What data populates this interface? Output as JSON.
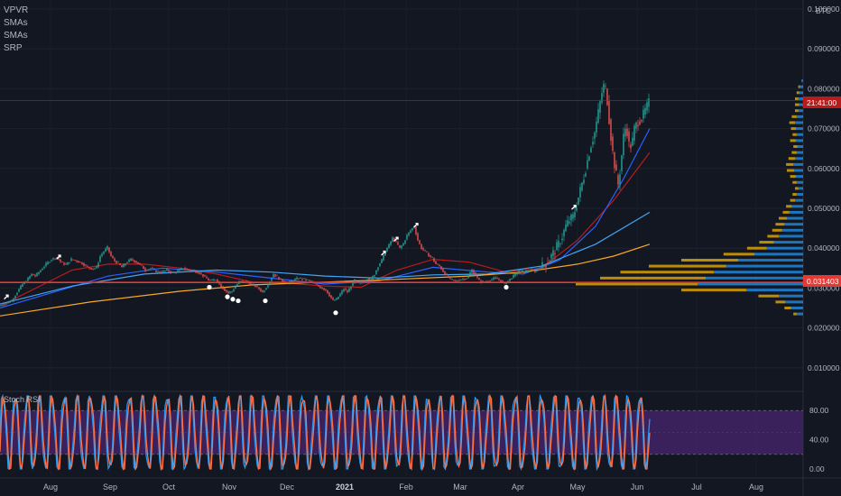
{
  "indicators": [
    "VPVR",
    "SMAs",
    "SMAs",
    "SRP"
  ],
  "currency": "BTC",
  "price_tag_top": "21:41:00",
  "price_tag_red": "0.031403",
  "stoch_label": "Stoch RSI",
  "colors": {
    "background": "#131722",
    "up_candle": "#26a69a",
    "down_candle": "#ef5350",
    "sma_red": "#b71c1c",
    "sma_blue": "#2962ff",
    "sma_lightblue": "#42a5f5",
    "sma_yellow": "#f9a825",
    "support_line": "#e53935",
    "stoch_k": "#2196f3",
    "stoch_d": "#ff7043",
    "stoch_band": "#5b2a8c",
    "vp_blue": "#2196f3",
    "vp_yellow": "#f5b400"
  },
  "chart_data": {
    "type": "candlestick",
    "symbol_quote": "BTC",
    "y_axis": {
      "ticks": [
        "0.010000",
        "0.020000",
        "0.030000",
        "0.040000",
        "0.050000",
        "0.060000",
        "0.070000",
        "0.080000",
        "0.090000",
        "0.100000"
      ],
      "range": [
        0.0,
        0.1
      ]
    },
    "x_axis": {
      "ticks": [
        "Aug",
        "Sep",
        "Oct",
        "Nov",
        "Dec",
        "2021",
        "Feb",
        "Mar",
        "Apr",
        "May",
        "Jun",
        "Jul",
        "Aug"
      ],
      "bold": [
        "2021"
      ]
    },
    "price_path": [
      [
        0,
        0.0255
      ],
      [
        8,
        0.0262
      ],
      [
        14,
        0.0268
      ],
      [
        20,
        0.029
      ],
      [
        26,
        0.031
      ],
      [
        30,
        0.0318
      ],
      [
        36,
        0.0335
      ],
      [
        40,
        0.033
      ],
      [
        46,
        0.0345
      ],
      [
        52,
        0.036
      ],
      [
        58,
        0.0372
      ],
      [
        64,
        0.0378
      ],
      [
        68,
        0.0366
      ],
      [
        74,
        0.0358
      ],
      [
        80,
        0.0372
      ],
      [
        86,
        0.0368
      ],
      [
        92,
        0.0362
      ],
      [
        98,
        0.0352
      ],
      [
        104,
        0.0348
      ],
      [
        108,
        0.0352
      ],
      [
        112,
        0.038
      ],
      [
        116,
        0.0392
      ],
      [
        120,
        0.0402
      ],
      [
        124,
        0.038
      ],
      [
        128,
        0.0368
      ],
      [
        132,
        0.0362
      ],
      [
        136,
        0.0352
      ],
      [
        140,
        0.0362
      ],
      [
        146,
        0.0372
      ],
      [
        152,
        0.0365
      ],
      [
        158,
        0.0355
      ],
      [
        162,
        0.0345
      ],
      [
        168,
        0.035
      ],
      [
        174,
        0.0342
      ],
      [
        180,
        0.034
      ],
      [
        186,
        0.0345
      ],
      [
        192,
        0.0338
      ],
      [
        198,
        0.0343
      ],
      [
        204,
        0.035
      ],
      [
        210,
        0.0346
      ],
      [
        216,
        0.0344
      ],
      [
        222,
        0.0338
      ],
      [
        228,
        0.0328
      ],
      [
        232,
        0.032
      ],
      [
        236,
        0.0318
      ],
      [
        240,
        0.0322
      ],
      [
        246,
        0.0305
      ],
      [
        250,
        0.0295
      ],
      [
        254,
        0.0288
      ],
      [
        258,
        0.0292
      ],
      [
        262,
        0.0305
      ],
      [
        266,
        0.0315
      ],
      [
        272,
        0.0318
      ],
      [
        278,
        0.031
      ],
      [
        284,
        0.0305
      ],
      [
        288,
        0.0298
      ],
      [
        292,
        0.029
      ],
      [
        296,
        0.0302
      ],
      [
        300,
        0.0318
      ],
      [
        304,
        0.0335
      ],
      [
        308,
        0.0328
      ],
      [
        314,
        0.0318
      ],
      [
        320,
        0.0312
      ],
      [
        326,
        0.032
      ],
      [
        332,
        0.0325
      ],
      [
        338,
        0.0322
      ],
      [
        344,
        0.0318
      ],
      [
        350,
        0.031
      ],
      [
        356,
        0.0302
      ],
      [
        362,
        0.0295
      ],
      [
        366,
        0.0282
      ],
      [
        370,
        0.0268
      ],
      [
        374,
        0.0272
      ],
      [
        378,
        0.0285
      ],
      [
        382,
        0.0298
      ],
      [
        386,
        0.029
      ],
      [
        390,
        0.0305
      ],
      [
        394,
        0.032
      ],
      [
        398,
        0.0312
      ],
      [
        404,
        0.0315
      ],
      [
        408,
        0.0325
      ],
      [
        412,
        0.0322
      ],
      [
        416,
        0.0335
      ],
      [
        420,
        0.0355
      ],
      [
        424,
        0.037
      ],
      [
        428,
        0.0392
      ],
      [
        432,
        0.0408
      ],
      [
        436,
        0.0425
      ],
      [
        440,
        0.0415
      ],
      [
        444,
        0.04
      ],
      [
        448,
        0.0412
      ],
      [
        452,
        0.0432
      ],
      [
        456,
        0.0445
      ],
      [
        460,
        0.0455
      ],
      [
        464,
        0.042
      ],
      [
        468,
        0.04
      ],
      [
        472,
        0.0392
      ],
      [
        476,
        0.0382
      ],
      [
        480,
        0.0375
      ],
      [
        484,
        0.036
      ],
      [
        488,
        0.0355
      ],
      [
        492,
        0.0342
      ],
      [
        496,
        0.033
      ],
      [
        500,
        0.0322
      ],
      [
        506,
        0.0318
      ],
      [
        512,
        0.0322
      ],
      [
        518,
        0.0325
      ],
      [
        524,
        0.0345
      ],
      [
        528,
        0.0332
      ],
      [
        532,
        0.0318
      ],
      [
        538,
        0.0315
      ],
      [
        544,
        0.032
      ],
      [
        550,
        0.0325
      ],
      [
        556,
        0.0318
      ],
      [
        560,
        0.031
      ],
      [
        564,
        0.0318
      ],
      [
        570,
        0.033
      ],
      [
        576,
        0.0345
      ],
      [
        582,
        0.034
      ],
      [
        588,
        0.0345
      ],
      [
        594,
        0.0342
      ],
      [
        600,
        0.035
      ],
      [
        606,
        0.0362
      ],
      [
        612,
        0.038
      ],
      [
        616,
        0.0395
      ],
      [
        620,
        0.041
      ],
      [
        624,
        0.043
      ],
      [
        628,
        0.0455
      ],
      [
        632,
        0.047
      ],
      [
        636,
        0.0478
      ],
      [
        640,
        0.051
      ],
      [
        644,
        0.0545
      ],
      [
        648,
        0.058
      ],
      [
        652,
        0.062
      ],
      [
        656,
        0.066
      ],
      [
        660,
        0.069
      ],
      [
        664,
        0.074
      ],
      [
        668,
        0.079
      ],
      [
        671,
        0.0815
      ],
      [
        674,
        0.077
      ],
      [
        677,
        0.07
      ],
      [
        680,
        0.064
      ],
      [
        683,
        0.0595
      ],
      [
        686,
        0.056
      ],
      [
        689,
        0.061
      ],
      [
        692,
        0.068
      ],
      [
        695,
        0.071
      ],
      [
        698,
        0.066
      ],
      [
        701,
        0.0655
      ],
      [
        704,
        0.07
      ],
      [
        708,
        0.0718
      ],
      [
        712,
        0.0725
      ],
      [
        716,
        0.0745
      ],
      [
        720,
        0.0765
      ]
    ],
    "sma_paths": {
      "red": [
        [
          0,
          0.0255
        ],
        [
          40,
          0.03
        ],
        [
          80,
          0.0345
        ],
        [
          120,
          0.036
        ],
        [
          160,
          0.036
        ],
        [
          200,
          0.035
        ],
        [
          240,
          0.0335
        ],
        [
          280,
          0.0315
        ],
        [
          320,
          0.0312
        ],
        [
          360,
          0.0305
        ],
        [
          400,
          0.0302
        ],
        [
          440,
          0.0345
        ],
        [
          480,
          0.0372
        ],
        [
          520,
          0.0365
        ],
        [
          560,
          0.034
        ],
        [
          600,
          0.035
        ],
        [
          640,
          0.042
        ],
        [
          680,
          0.052
        ],
        [
          720,
          0.064
        ]
      ],
      "blue": [
        [
          0,
          0.025
        ],
        [
          60,
          0.029
        ],
        [
          120,
          0.033
        ],
        [
          180,
          0.035
        ],
        [
          240,
          0.034
        ],
        [
          300,
          0.0325
        ],
        [
          360,
          0.031
        ],
        [
          420,
          0.0318
        ],
        [
          480,
          0.0352
        ],
        [
          540,
          0.034
        ],
        [
          580,
          0.0335
        ],
        [
          620,
          0.037
        ],
        [
          660,
          0.0455
        ],
        [
          690,
          0.057
        ],
        [
          720,
          0.07
        ]
      ],
      "lightblue": [
        [
          0,
          0.026
        ],
        [
          80,
          0.0305
        ],
        [
          160,
          0.0335
        ],
        [
          240,
          0.0345
        ],
        [
          300,
          0.034
        ],
        [
          360,
          0.033
        ],
        [
          420,
          0.0325
        ],
        [
          480,
          0.0333
        ],
        [
          540,
          0.0335
        ],
        [
          600,
          0.0355
        ],
        [
          660,
          0.041
        ],
        [
          720,
          0.049
        ]
      ],
      "yellow": [
        [
          0,
          0.023
        ],
        [
          100,
          0.0265
        ],
        [
          200,
          0.0292
        ],
        [
          280,
          0.0308
        ],
        [
          360,
          0.0315
        ],
        [
          440,
          0.0322
        ],
        [
          520,
          0.033
        ],
        [
          580,
          0.034
        ],
        [
          640,
          0.036
        ],
        [
          680,
          0.038
        ],
        [
          720,
          0.041
        ]
      ]
    },
    "support_level": 0.0314,
    "top_level": 0.077,
    "markers": {
      "up": [
        [
          8,
          0.028
        ],
        [
          66,
          0.038
        ],
        [
          426,
          0.039
        ],
        [
          440,
          0.0425
        ],
        [
          462,
          0.046
        ],
        [
          637,
          0.0505
        ]
      ],
      "down": [
        [
          232,
          0.0302
        ],
        [
          252,
          0.0278
        ],
        [
          258,
          0.0272
        ],
        [
          264,
          0.0268
        ],
        [
          294,
          0.0268
        ],
        [
          372,
          0.0238
        ],
        [
          561,
          0.0302
        ]
      ]
    },
    "volume_profile": [
      {
        "price": 0.082,
        "blue": 2,
        "yellow": 0
      },
      {
        "price": 0.0805,
        "blue": 4,
        "yellow": 2
      },
      {
        "price": 0.079,
        "blue": 5,
        "yellow": 3
      },
      {
        "price": 0.0775,
        "blue": 6,
        "yellow": 4
      },
      {
        "price": 0.076,
        "blue": 5,
        "yellow": 5
      },
      {
        "price": 0.0745,
        "blue": 6,
        "yellow": 4
      },
      {
        "price": 0.073,
        "blue": 8,
        "yellow": 6
      },
      {
        "price": 0.0715,
        "blue": 10,
        "yellow": 7
      },
      {
        "price": 0.07,
        "blue": 9,
        "yellow": 6
      },
      {
        "price": 0.0685,
        "blue": 8,
        "yellow": 5
      },
      {
        "price": 0.067,
        "blue": 9,
        "yellow": 7
      },
      {
        "price": 0.0655,
        "blue": 7,
        "yellow": 5
      },
      {
        "price": 0.064,
        "blue": 8,
        "yellow": 6
      },
      {
        "price": 0.0625,
        "blue": 10,
        "yellow": 8
      },
      {
        "price": 0.061,
        "blue": 12,
        "yellow": 9
      },
      {
        "price": 0.0595,
        "blue": 11,
        "yellow": 9
      },
      {
        "price": 0.058,
        "blue": 9,
        "yellow": 7
      },
      {
        "price": 0.0565,
        "blue": 8,
        "yellow": 5
      },
      {
        "price": 0.055,
        "blue": 6,
        "yellow": 4
      },
      {
        "price": 0.0535,
        "blue": 8,
        "yellow": 5
      },
      {
        "price": 0.052,
        "blue": 10,
        "yellow": 6
      },
      {
        "price": 0.0505,
        "blue": 14,
        "yellow": 7
      },
      {
        "price": 0.049,
        "blue": 17,
        "yellow": 8
      },
      {
        "price": 0.0475,
        "blue": 20,
        "yellow": 10
      },
      {
        "price": 0.046,
        "blue": 23,
        "yellow": 11
      },
      {
        "price": 0.0445,
        "blue": 26,
        "yellow": 12
      },
      {
        "price": 0.043,
        "blue": 30,
        "yellow": 14
      },
      {
        "price": 0.0415,
        "blue": 36,
        "yellow": 18
      },
      {
        "price": 0.04,
        "blue": 45,
        "yellow": 24
      },
      {
        "price": 0.0385,
        "blue": 60,
        "yellow": 38
      },
      {
        "price": 0.037,
        "blue": 80,
        "yellow": 70
      },
      {
        "price": 0.0355,
        "blue": 95,
        "yellow": 95
      },
      {
        "price": 0.034,
        "blue": 110,
        "yellow": 115
      },
      {
        "price": 0.0325,
        "blue": 120,
        "yellow": 130
      },
      {
        "price": 0.031,
        "blue": 130,
        "yellow": 150
      },
      {
        "price": 0.0295,
        "blue": 70,
        "yellow": 80
      },
      {
        "price": 0.028,
        "blue": 30,
        "yellow": 25
      },
      {
        "price": 0.0265,
        "blue": 22,
        "yellow": 12
      },
      {
        "price": 0.025,
        "blue": 15,
        "yellow": 8
      },
      {
        "price": 0.0235,
        "blue": 8,
        "yellow": 4
      }
    ],
    "stoch_rsi": {
      "label": "Stoch RSI",
      "ticks": [
        "0.00",
        "40.00",
        "80.00"
      ],
      "range": [
        0,
        100
      ],
      "band": [
        20,
        80
      ],
      "cycles": 52
    }
  }
}
